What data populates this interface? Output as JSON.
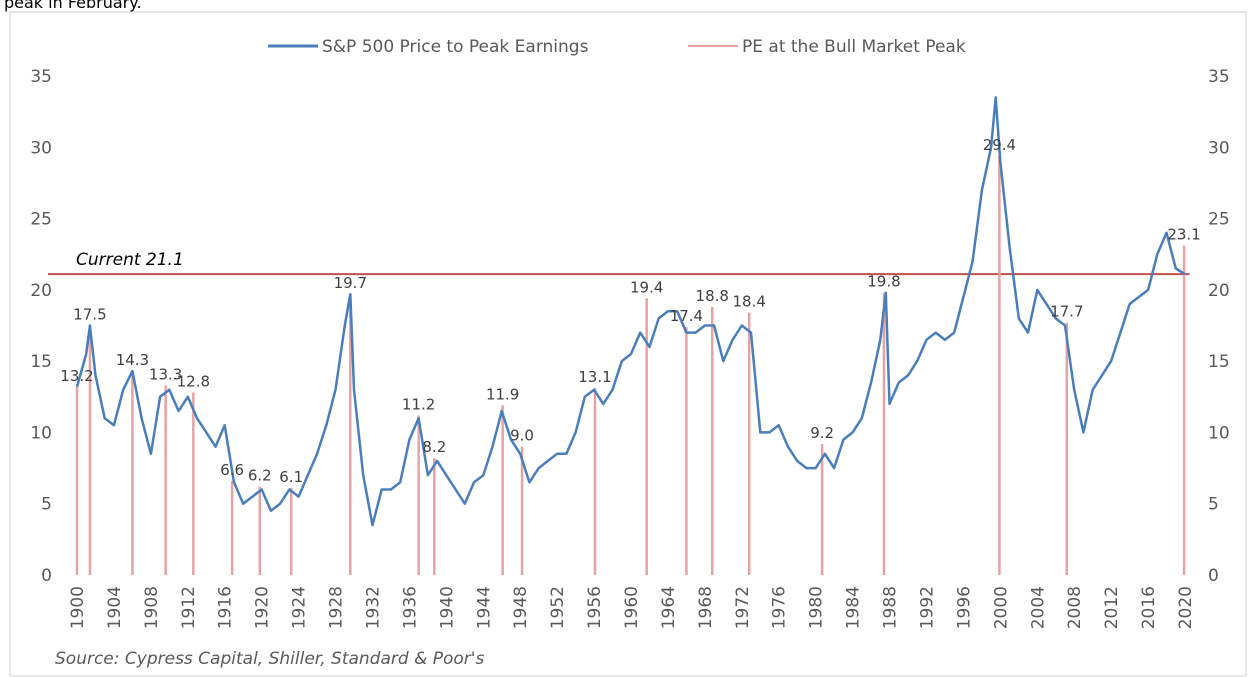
{
  "caption": "peak in February.",
  "chart_data": {
    "type": "line",
    "legend": "top",
    "series": [
      {
        "name": "S&P 500 Price to Peak Earnings",
        "color": "#4a7ebb",
        "x": [
          1900,
          1901,
          1901.4,
          1902,
          1903,
          1904,
          1905,
          1906,
          1907,
          1908,
          1909,
          1910,
          1911,
          1912,
          1913,
          1914,
          1915,
          1916,
          1917,
          1918,
          1919,
          1920,
          1921,
          1922,
          1923,
          1924,
          1925,
          1926,
          1927,
          1928,
          1929,
          1929.6,
          1930,
          1931,
          1932,
          1933,
          1934,
          1935,
          1936,
          1937,
          1938,
          1939,
          1940,
          1941,
          1942,
          1943,
          1944,
          1945,
          1946,
          1947,
          1948,
          1949,
          1950,
          1951,
          1952,
          1953,
          1954,
          1955,
          1956,
          1957,
          1958,
          1959,
          1960,
          1961,
          1962,
          1963,
          1964,
          1965,
          1966,
          1967,
          1968,
          1969,
          1970,
          1971,
          1972,
          1973,
          1974,
          1975,
          1976,
          1977,
          1978,
          1979,
          1980,
          1981,
          1982,
          1983,
          1984,
          1985,
          1986,
          1987,
          1987.6,
          1988,
          1989,
          1990,
          1991,
          1992,
          1993,
          1994,
          1995,
          1996,
          1997,
          1998,
          1999,
          1999.5,
          2000,
          2001,
          2002,
          2003,
          2004,
          2005,
          2006,
          2007,
          2008,
          2009,
          2010,
          2011,
          2012,
          2013,
          2014,
          2015,
          2016,
          2017,
          2018,
          2019,
          2020
        ],
        "values": [
          13.2,
          15.5,
          17.5,
          14,
          11,
          10.5,
          13,
          14.3,
          11,
          8.5,
          12.5,
          13,
          11.5,
          12.5,
          11,
          10,
          9,
          10.5,
          6.5,
          5,
          5.5,
          6,
          4.5,
          5,
          6,
          5.5,
          7,
          8.5,
          10.5,
          13,
          17.5,
          19.7,
          13,
          7,
          3.5,
          6,
          6,
          6.5,
          9.5,
          11,
          7,
          8,
          7,
          6,
          5,
          6.5,
          7,
          9,
          11.5,
          9.5,
          8.5,
          6.5,
          7.5,
          8,
          8.5,
          8.5,
          10,
          12.5,
          13,
          12,
          13,
          15,
          15.5,
          17,
          16,
          18,
          18.5,
          18.5,
          17,
          17,
          17.5,
          17.5,
          15,
          16.5,
          17.5,
          17,
          10,
          10,
          10.5,
          9,
          8,
          7.5,
          7.5,
          8.5,
          7.5,
          9.5,
          10,
          11,
          13.5,
          16.5,
          19.8,
          12,
          13.5,
          14,
          15,
          16.5,
          17,
          16.5,
          17,
          19.5,
          22,
          27,
          30,
          33.5,
          29,
          23,
          18,
          17,
          20,
          19,
          18,
          17.5,
          13,
          10,
          13,
          14,
          15,
          17,
          19,
          19.5,
          20,
          22.5,
          24,
          21.5,
          21.1
        ]
      },
      {
        "name": "PE at the Bull Market Peak",
        "color": "#e6a3a3",
        "x": [
          1900,
          1901.4,
          1906,
          1909.6,
          1912.6,
          1916.8,
          1919.8,
          1923.2,
          1929.6,
          1937,
          1938.7,
          1946.1,
          1948.2,
          1956.1,
          1961.7,
          1966,
          1968.8,
          1972.8,
          1980.7,
          1987.4,
          1999.9,
          2007.2,
          2019.9
        ],
        "values": [
          13.2,
          17.5,
          14.3,
          13.3,
          12.8,
          6.6,
          6.2,
          6.1,
          19.7,
          11.2,
          8.2,
          11.9,
          9,
          13.1,
          19.4,
          17.4,
          18.8,
          18.4,
          9.2,
          19.8,
          29.4,
          17.7,
          23.1
        ],
        "value_labels": [
          "13.2",
          "17.5",
          "14.3",
          "13.3",
          "12.8",
          "6.6",
          "6.2",
          "6.1",
          "19.7",
          "11.2",
          "8.2",
          "11.9",
          "9.0",
          "13.1",
          "19.4",
          "17.4",
          "18.8",
          "18.4",
          "9.2",
          "19.8",
          "29.4",
          "17.7",
          "23.1"
        ]
      }
    ],
    "reference_line": {
      "label": "Current 21.1",
      "value": 21.1,
      "color": "#c0504d"
    },
    "xlim": [
      1900,
      2020.5
    ],
    "xticks": [
      1900,
      1904,
      1908,
      1912,
      1916,
      1920,
      1924,
      1928,
      1932,
      1936,
      1940,
      1944,
      1948,
      1952,
      1956,
      1960,
      1964,
      1968,
      1972,
      1976,
      1980,
      1984,
      1988,
      1992,
      1996,
      2000,
      2004,
      2008,
      2012,
      2016,
      2020
    ],
    "ylim": [
      0,
      35
    ],
    "yticks": [
      0,
      5,
      10,
      15,
      20,
      25,
      30,
      35
    ],
    "y2lim": [
      0,
      35
    ],
    "y2ticks": [
      0,
      5,
      10,
      15,
      20,
      25,
      30,
      35
    ],
    "source": "Source: Cypress Capital, Shiller, Standard & Poor's"
  }
}
